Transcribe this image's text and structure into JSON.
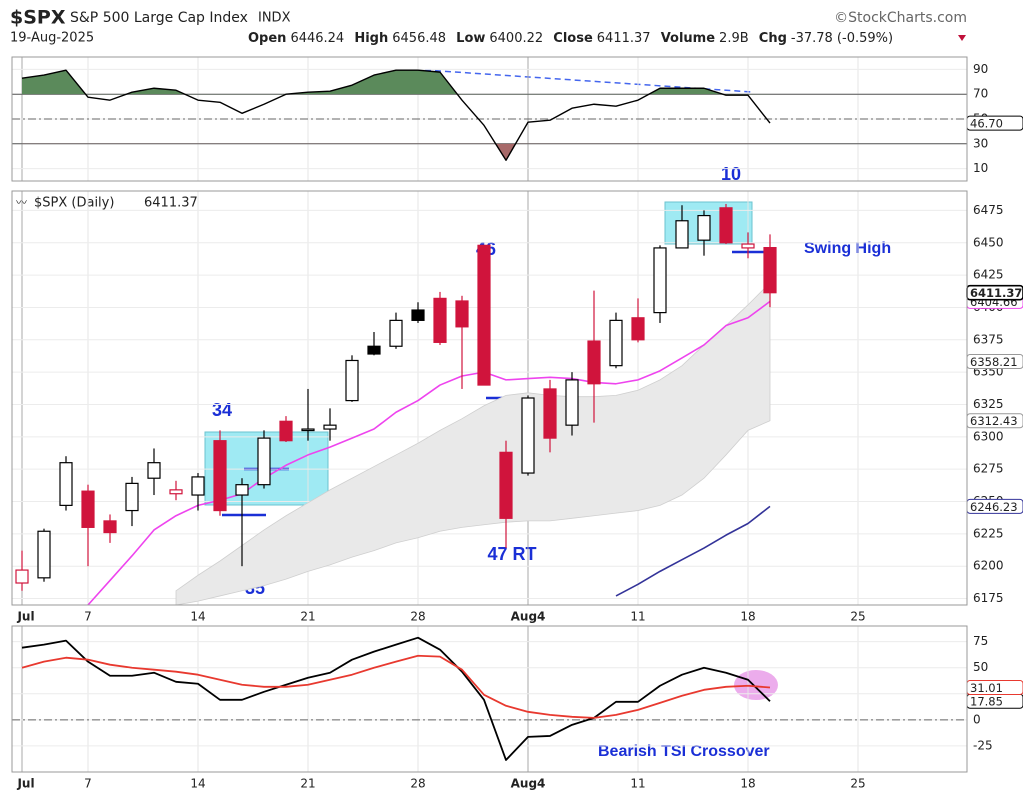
{
  "header": {
    "symbol": "$SPX",
    "name": "S&P 500 Large Cap Index",
    "exchange": "INDX",
    "source": "©StockCharts.com",
    "date": "19-Aug-2025",
    "quote": [
      {
        "label": "Open",
        "value": 6446.24
      },
      {
        "label": "High",
        "value": 6456.48
      },
      {
        "label": "Low",
        "value": 6400.22
      },
      {
        "label": "Close",
        "value": 6411.37
      },
      {
        "label": "Volume",
        "value": "2.9B"
      },
      {
        "label": "Chg",
        "value": "-37.78 (-0.59%)"
      }
    ]
  },
  "chart_data": [
    {
      "type": "line",
      "color": "#000000",
      "overbought_color": "#5b8a5b",
      "oversold_color": "#a86a6a",
      "values": [
        82.9,
        85.4,
        89.4,
        67.6,
        65.2,
        71.6,
        74.8,
        73.2,
        65.2,
        63.5,
        54.6,
        61.9,
        70.0,
        71.6,
        72.4,
        77.3,
        85.4,
        89.4,
        89.4,
        87.8,
        65.2,
        44.9,
        16.7,
        47.4,
        49.0,
        58.7,
        61.9,
        60.3,
        65.2,
        74.8,
        74.8,
        74.8,
        69.2,
        69.2,
        46.7,
        null,
        null,
        null,
        null,
        null,
        null,
        null,
        null
      ],
      "value_label": "46.70",
      "ylim": [
        0,
        100
      ],
      "yticks": [
        90,
        70,
        50,
        30,
        10
      ],
      "levels": [
        70,
        30
      ],
      "midline": 50
    },
    {
      "type": "candlestick",
      "legend": "$SPX (Daily)",
      "categories": [
        "Jul",
        null,
        null,
        "7",
        null,
        null,
        null,
        null,
        "14",
        null,
        null,
        null,
        null,
        "21",
        null,
        null,
        null,
        null,
        "28",
        null,
        null,
        null,
        null,
        "Aug4",
        null,
        null,
        null,
        null,
        "11",
        null,
        null,
        null,
        null,
        "18",
        null,
        null,
        null,
        null,
        "25",
        null,
        null,
        null,
        null
      ],
      "open": [
        6187,
        6191,
        6247,
        6258,
        6235,
        6243,
        6268,
        6256,
        6255,
        6297,
        6255,
        6263,
        6312,
        6305,
        6306,
        6328,
        6370,
        6370,
        6398,
        6407,
        6405,
        6448,
        6288,
        6272,
        6337,
        6309,
        6374,
        6355,
        6392,
        6396,
        6446,
        6452,
        6477,
        6446,
        6446.24,
        null,
        null,
        null,
        null,
        null,
        null,
        null,
        null
      ],
      "high": [
        6212,
        6229,
        6285,
        6263,
        6240,
        6269,
        6291,
        6266,
        6272,
        6305,
        6268,
        6305,
        6316,
        6337,
        6322,
        6363,
        6381,
        6396,
        6404,
        6412,
        6409,
        6448,
        6297,
        6332,
        6344,
        6350,
        6413,
        6396,
        6407,
        6448,
        6479,
        6475,
        6480,
        6458,
        6456.48,
        null,
        null,
        null,
        null,
        null,
        null,
        null,
        null
      ],
      "low": [
        6181,
        6188,
        6243,
        6200,
        6218,
        6231,
        6255,
        6251,
        6243,
        6239,
        6200,
        6260,
        6296,
        6297,
        6297,
        6327,
        6363,
        6368,
        6388,
        6371,
        6337,
        6340,
        6214,
        6270,
        6288,
        6301,
        6311,
        6353,
        6373,
        6388,
        6446,
        6440,
        6449,
        6438,
        6400.22,
        null,
        null,
        null,
        null,
        null,
        null,
        null,
        null
      ],
      "close": [
        6197,
        6227,
        6280,
        6230,
        6226,
        6264,
        6280,
        6259,
        6269,
        6243,
        6263,
        6299,
        6297,
        6306,
        6309,
        6359,
        6364,
        6390,
        6390,
        6373,
        6385,
        6340,
        6237,
        6330,
        6299,
        6344,
        6341,
        6390,
        6375,
        6446,
        6467,
        6471,
        6450,
        6449,
        6411.37,
        null,
        null,
        null,
        null,
        null,
        null,
        null,
        null
      ],
      "colors": [
        "#d0143c",
        "#000000",
        "#000000",
        "#d0143c",
        "#d0143c",
        "#000000",
        "#000000",
        "#d0143c",
        "#000000",
        "#d0143c",
        "#000000",
        "#000000",
        "#d0143c",
        "#000000",
        "#000000",
        "#000000",
        "#000000",
        "#000000",
        "#000000",
        "#d0143c",
        "#d0143c",
        "#d0143c",
        "#d0143c",
        "#000000",
        "#d0143c",
        "#000000",
        "#d0143c",
        "#000000",
        "#d0143c",
        "#000000",
        "#000000",
        "#000000",
        "#d0143c",
        "#d0143c",
        "#d0143c",
        null,
        null,
        null,
        null,
        null,
        null,
        null,
        null
      ],
      "series": [
        {
          "color": "#ee44ee",
          "values": [
            null,
            null,
            null,
            6170,
            6189,
            6208,
            6228,
            6239,
            6247,
            6251,
            6256,
            6268,
            6278,
            6286,
            6292,
            6299,
            6306,
            6319,
            6328,
            6340,
            6347,
            6350,
            6344,
            6345,
            6346,
            6345,
            6342,
            6341,
            6344,
            6351,
            6361,
            6371,
            6386,
            6392,
            6404.66,
            null,
            null,
            null,
            null,
            null,
            null,
            null,
            null
          ]
        },
        {
          "color": "#333399",
          "values": [
            null,
            null,
            null,
            null,
            null,
            null,
            null,
            null,
            null,
            null,
            null,
            null,
            null,
            null,
            null,
            null,
            null,
            null,
            null,
            null,
            null,
            null,
            null,
            null,
            null,
            null,
            null,
            6177,
            6186,
            6196,
            6205,
            6214,
            6224,
            6233,
            6246.23,
            null,
            null,
            null,
            null,
            null,
            null,
            null,
            null
          ]
        }
      ],
      "band": {
        "color": "#e9e9e9",
        "upper": [
          null,
          null,
          null,
          null,
          null,
          null,
          null,
          6181,
          6193,
          6204,
          6216,
          6228,
          6239,
          6249,
          6259,
          6268,
          6277,
          6286,
          6295,
          6305,
          6314,
          6324,
          6332,
          6334,
          6332,
          6331,
          6331,
          6332,
          6336,
          6344,
          6355,
          6371,
          6386,
          6402,
          6419,
          null,
          null,
          null,
          null,
          null,
          null,
          null,
          null
        ],
        "lower": [
          null,
          null,
          null,
          null,
          null,
          null,
          null,
          6170,
          6173,
          6177,
          6181,
          6185,
          6190,
          6196,
          6201,
          6207,
          6212,
          6218,
          6222,
          6227,
          6230,
          6232,
          6234,
          6235,
          6235,
          6237,
          6239,
          6241,
          6243,
          6247,
          6255,
          6268,
          6286,
          6305,
          6312.43,
          null,
          null,
          null,
          null,
          null,
          null,
          null,
          null
        ],
        "mid_last": 6358.21
      },
      "ylim": [
        6170,
        6490
      ],
      "yticks": [
        6475,
        6450,
        6425,
        6400,
        6375,
        6350,
        6325,
        6300,
        6275,
        6250,
        6225,
        6200,
        6175
      ],
      "annotations": [
        "34",
        "35",
        "46",
        "47 RT",
        "10",
        "Swing High"
      ]
    },
    {
      "type": "line",
      "categories": [
        "Jul",
        null,
        null,
        "7",
        null,
        null,
        null,
        null,
        "14",
        null,
        null,
        null,
        null,
        "21",
        null,
        null,
        null,
        null,
        "28",
        null,
        null,
        null,
        null,
        "Aug4",
        null,
        null,
        null,
        null,
        "11",
        null,
        null,
        null,
        null,
        "18",
        null,
        null,
        null,
        null,
        "25",
        null,
        null,
        null,
        null
      ],
      "series": [
        {
          "color": "#000000",
          "values": [
            69.2,
            72.1,
            76,
            55.8,
            42.3,
            42.3,
            45.2,
            36.5,
            34.6,
            19.2,
            19.2,
            26.9,
            33.7,
            40.4,
            45.2,
            57.7,
            65.4,
            72.1,
            78.8,
            67.3,
            46.2,
            19.2,
            -38.5,
            -16.3,
            -15.4,
            -4.8,
            1.9,
            17.3,
            17.3,
            32.7,
            43.3,
            50,
            45.2,
            38.5,
            17.85,
            null,
            null,
            null,
            null,
            null,
            null,
            null,
            null
          ]
        },
        {
          "color": "#e8392f",
          "values": [
            50,
            55.8,
            59.6,
            57.7,
            52.9,
            50,
            48.1,
            46.2,
            43.3,
            38.5,
            33.7,
            31.7,
            31.7,
            33.7,
            38.5,
            43.3,
            50,
            55.8,
            61.5,
            60.6,
            48.1,
            24,
            13.5,
            7.7,
            4.8,
            2.9,
            1.9,
            4.8,
            9.6,
            16.3,
            23.1,
            28.8,
            31.7,
            32.7,
            31.01,
            null,
            null,
            null,
            null,
            null,
            null,
            null,
            null
          ]
        }
      ],
      "ylim": [
        -50,
        90
      ],
      "yticks": [
        75,
        50,
        25,
        0,
        -25
      ],
      "midline": 0,
      "annotation": "Bearish TSI Crossover"
    }
  ]
}
